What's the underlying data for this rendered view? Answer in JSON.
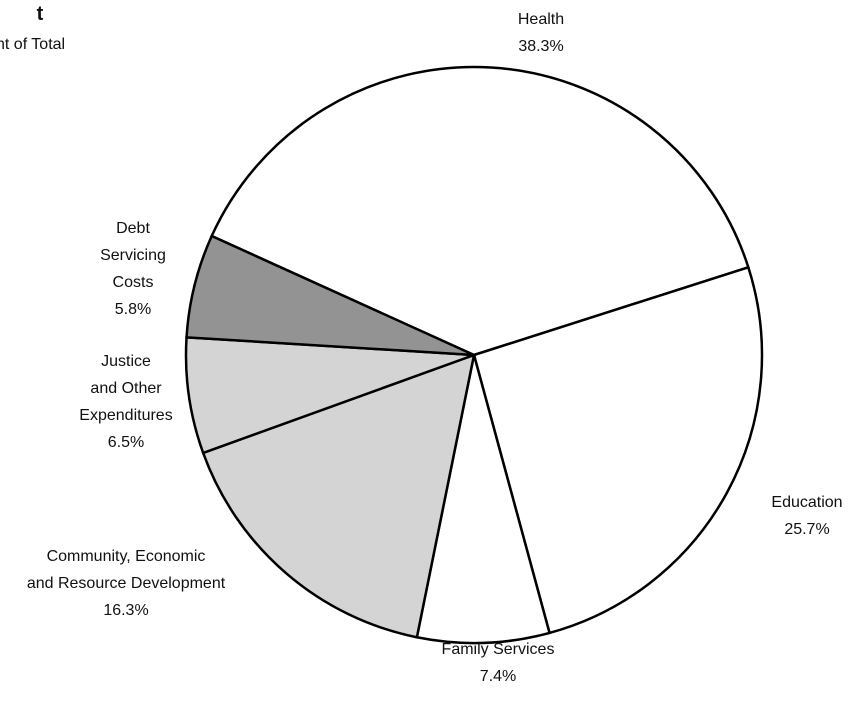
{
  "chart_data": {
    "type": "pie",
    "title": "t",
    "subtitle": "nt of Total",
    "categories": [
      "Health",
      "Education",
      "Family Services",
      "Community, Economic\nand Resource Development",
      "Justice\nand Other\nExpenditures",
      "Debt\nServicing\nCosts"
    ],
    "values": [
      38.3,
      25.7,
      7.4,
      16.3,
      6.5,
      5.8
    ],
    "value_labels": [
      "38.3%",
      "25.7%",
      "7.4%",
      "16.3%",
      "6.5%",
      "5.8%"
    ],
    "colors": [
      "#ffffff",
      "#ffffff",
      "#ffffff",
      "#d4d4d4",
      "#d4d4d4",
      "#939393"
    ]
  }
}
